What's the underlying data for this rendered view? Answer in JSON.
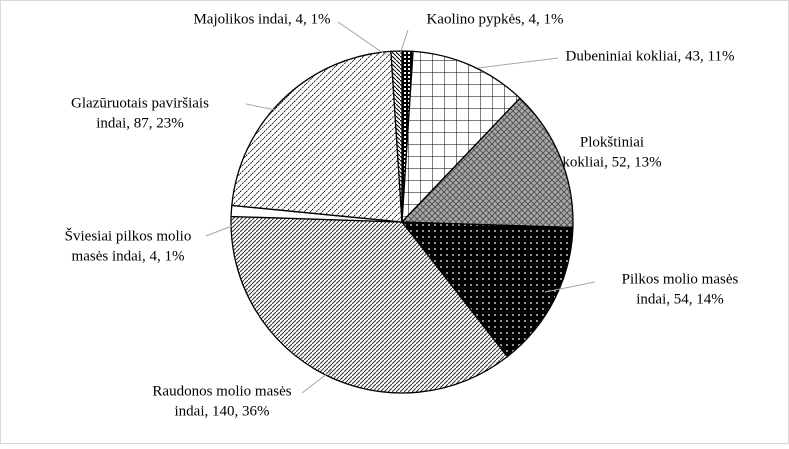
{
  "chart_data": {
    "type": "pie",
    "categories": [
      "Kaolino pypkės",
      "Dubeniniai kokliai",
      "Plokštiniai kokliai",
      "Pilkos molio masės indai",
      "Raudonos molio masės indai",
      "Šviesiai pilkos molio masės indai",
      "Glazūruotais paviršiais indai",
      "Majolikos indai"
    ],
    "values": [
      4,
      43,
      52,
      54,
      140,
      4,
      87,
      4
    ],
    "labels": [
      [
        "Kaolino pypkės, 4, 1%"
      ],
      [
        "Dubeniniai kokliai, 43, 11%"
      ],
      [
        "Plokštiniai",
        "kokliai, 52, 13%"
      ],
      [
        "Pilkos molio masės",
        "indai, 54, 14%"
      ],
      [
        "Raudonos molio masės",
        "indai, 140, 36%"
      ],
      [
        "Šviesiai pilkos molio",
        "masės indai, 4, 1%"
      ],
      [
        "Glazūruotais paviršiais",
        "indai, 87, 23%"
      ],
      [
        "Majolikos indai, 4, 1%"
      ]
    ]
  }
}
